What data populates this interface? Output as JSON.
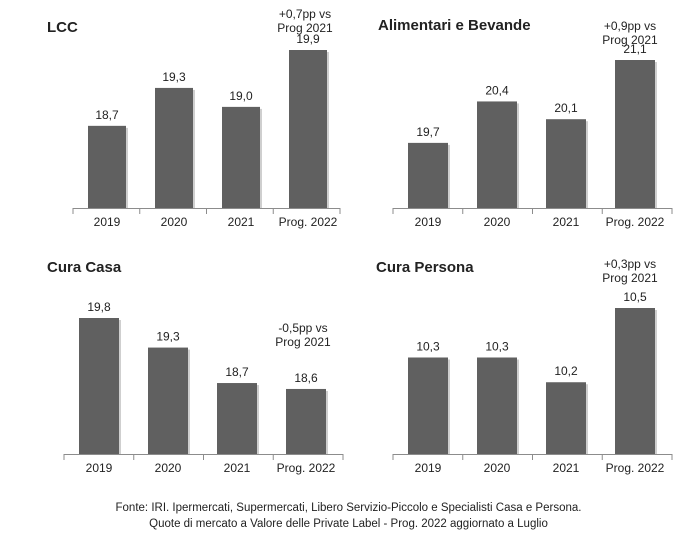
{
  "chart_data": [
    {
      "type": "bar",
      "title": "LCC",
      "categories": [
        "2019",
        "2020",
        "2021",
        "Prog. 2022"
      ],
      "values": [
        18.7,
        19.3,
        19.0,
        19.9
      ],
      "value_labels": [
        "18,7",
        "19,3",
        "19,0",
        "19,9"
      ],
      "ylim": [
        17.4,
        20.0
      ],
      "annotation": [
        "+0,7pp vs",
        "Prog 2021"
      ],
      "color": "#606060"
    },
    {
      "type": "bar",
      "title": "Alimentari  e Bevande",
      "categories": [
        "2019",
        "2020",
        "2021",
        "Prog. 2022"
      ],
      "values": [
        19.7,
        20.4,
        20.1,
        21.1
      ],
      "value_labels": [
        "19,7",
        "20,4",
        "20,1",
        "21,1"
      ],
      "ylim": [
        18.6,
        21.8
      ],
      "annotation": [
        "+0,9pp vs",
        "Prog 2021"
      ],
      "color": "#606060"
    },
    {
      "type": "bar",
      "title": "Cura Casa",
      "categories": [
        "2019",
        "2020",
        "2021",
        "Prog. 2022"
      ],
      "values": [
        19.8,
        19.3,
        18.7,
        18.6
      ],
      "value_labels": [
        "19,8",
        "19,3",
        "18,7",
        "18,6"
      ],
      "ylim": [
        17.5,
        20.0
      ],
      "annotation": [
        "-0,5pp vs",
        "Prog 2021"
      ],
      "color": "#606060"
    },
    {
      "type": "bar",
      "title": "Cura Persona",
      "categories": [
        "2019",
        "2020",
        "2021",
        "Prog. 2022"
      ],
      "values": [
        10.3,
        10.3,
        10.2,
        10.5
      ],
      "value_labels": [
        "10,3",
        "10,3",
        "10,2",
        "10,5"
      ],
      "ylim": [
        9.91,
        10.57
      ],
      "annotation": [
        "+0,3pp vs",
        "Prog 2021"
      ],
      "color": "#606060"
    }
  ],
  "footer": {
    "line1": "Fonte: IRI. Ipermercati, Supermercati, Libero Servizio-Piccolo e Specialisti Casa e Persona.",
    "line2": "Quote di mercato a Valore delle Private Label - Prog. 2022 aggiornato a Luglio"
  }
}
